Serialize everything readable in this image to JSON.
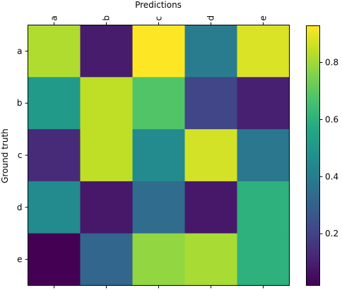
{
  "chart_data": {
    "type": "heatmap",
    "title": "",
    "xlabel": "Predictions",
    "ylabel": "Ground truth",
    "x_categories": [
      "a",
      "b",
      "c",
      "d",
      "e"
    ],
    "y_categories": [
      "a",
      "b",
      "c",
      "d",
      "e"
    ],
    "x_tick_position": "top",
    "matrix": [
      [
        0.82,
        0.09,
        0.93,
        0.4,
        0.88
      ],
      [
        0.51,
        0.84,
        0.68,
        0.21,
        0.1
      ],
      [
        0.13,
        0.84,
        0.45,
        0.87,
        0.38
      ],
      [
        0.45,
        0.08,
        0.34,
        0.08,
        0.6
      ],
      [
        0.02,
        0.32,
        0.78,
        0.81,
        0.6
      ]
    ],
    "colormap": "viridis",
    "colorbar": {
      "vmin": 0.02,
      "vmax": 0.93,
      "ticks": [
        0.2,
        0.4,
        0.6,
        0.8
      ],
      "tick_labels": [
        "0.2",
        "0.4",
        "0.6",
        "0.8"
      ]
    },
    "grid": false
  }
}
